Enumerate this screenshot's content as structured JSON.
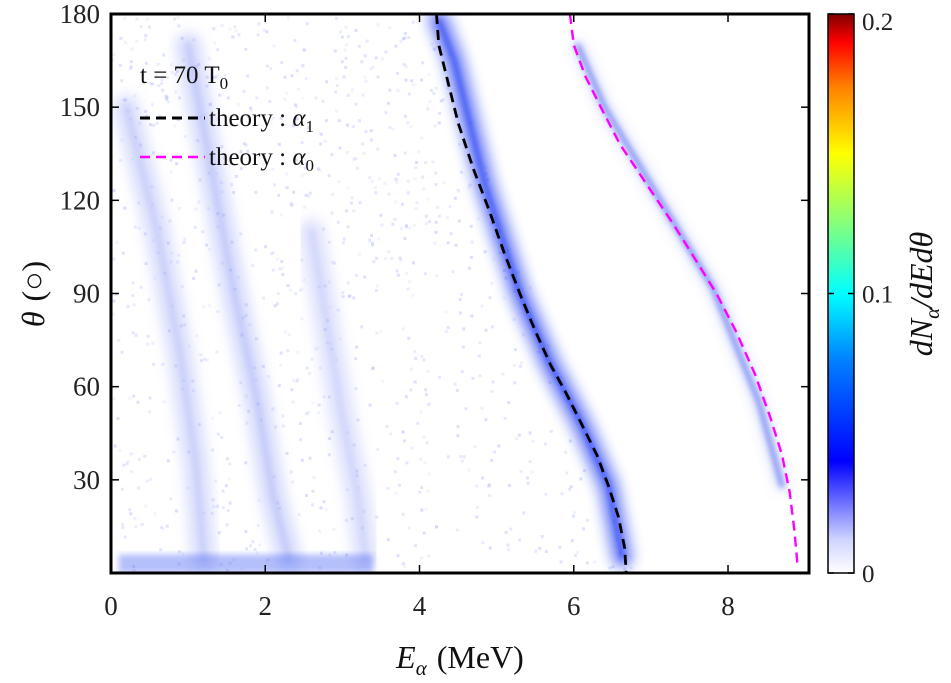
{
  "chart_data": {
    "type": "heatmap",
    "title": "",
    "annotation": {
      "text": "t = 70 T",
      "subscript": "0"
    },
    "xlabel": {
      "symbol": "E",
      "subscript": "α",
      "unit": "(MeV)"
    },
    "ylabel": {
      "symbol": "θ",
      "unit": "(○)"
    },
    "colorbar_label": "dN_α/dEdθ",
    "colormap": "white-blue-cyan-yellow-red (jet-like, white at 0)",
    "xlim": [
      0,
      9.05
    ],
    "ylim": [
      0,
      180
    ],
    "color_range": [
      0,
      0.2
    ],
    "x_ticks": [
      "0",
      "2",
      "4",
      "6",
      "8"
    ],
    "y_ticks": [
      "30",
      "60",
      "90",
      "120",
      "150",
      "180"
    ],
    "colorbar_ticks": [
      "0",
      "0.1",
      "0.2"
    ],
    "grid": false,
    "legend_position": "top-left",
    "legend": [
      {
        "label_text": "theory : ",
        "label_math": "α",
        "label_sub": "1",
        "color": "#000000",
        "style": "dashed"
      },
      {
        "label_text": "theory : ",
        "label_math": "α",
        "label_sub": "0",
        "color": "#ff00ff",
        "style": "dashed"
      }
    ],
    "series": [
      {
        "name": "theory : α1",
        "color": "#000000",
        "style": "dashed",
        "x": [
          4.22,
          4.25,
          4.35,
          4.5,
          4.7,
          4.9,
          5.1,
          5.3,
          5.5,
          5.7,
          5.9,
          6.1,
          6.3,
          6.45,
          6.58,
          6.66,
          6.68
        ],
        "y": [
          180,
          170,
          160,
          145,
          130,
          117,
          103,
          90,
          78,
          67,
          58,
          48,
          38,
          28,
          18,
          8,
          0
        ]
      },
      {
        "name": "theory : α0",
        "color": "#ff00ff",
        "style": "dashed",
        "x": [
          5.95,
          6.0,
          6.15,
          6.35,
          6.6,
          6.95,
          7.3,
          7.6,
          7.85,
          8.1,
          8.35,
          8.55,
          8.7,
          8.8,
          8.86,
          8.9
        ],
        "y": [
          180,
          170,
          160,
          150,
          138,
          125,
          112,
          100,
          90,
          78,
          64,
          50,
          38,
          26,
          14,
          3
        ]
      }
    ],
    "intensity_bands": [
      {
        "desc": "sim-alpha1-ridge",
        "color": "#1d3cf2",
        "x": [
          4.25,
          4.45,
          4.85,
          5.3,
          5.7,
          6.1,
          6.45,
          6.63
        ],
        "y": [
          178,
          165,
          125,
          90,
          67,
          48,
          28,
          5
        ]
      },
      {
        "desc": "sim-alpha0-ridge",
        "color": "#5a6ef0",
        "x": [
          6.05,
          6.4,
          7.0,
          7.8,
          8.4,
          8.7
        ],
        "y": [
          170,
          150,
          125,
          92,
          55,
          28
        ]
      },
      {
        "desc": "sim-low-energy-band-a",
        "color": "#8f9df5",
        "x": [
          1.0,
          1.3,
          1.6,
          1.9,
          2.1,
          2.3
        ],
        "y": [
          170,
          130,
          90,
          55,
          25,
          5
        ]
      },
      {
        "desc": "sim-low-energy-band-b",
        "color": "#9aa6f5",
        "x": [
          0.2,
          0.6,
          0.9,
          1.1,
          1.2
        ],
        "y": [
          150,
          110,
          70,
          35,
          5
        ]
      },
      {
        "desc": "sim-low-energy-band-c",
        "color": "#a9b3f7",
        "x": [
          2.6,
          2.8,
          3.0,
          3.2,
          3.3
        ],
        "y": [
          110,
          80,
          50,
          25,
          5
        ]
      }
    ]
  }
}
